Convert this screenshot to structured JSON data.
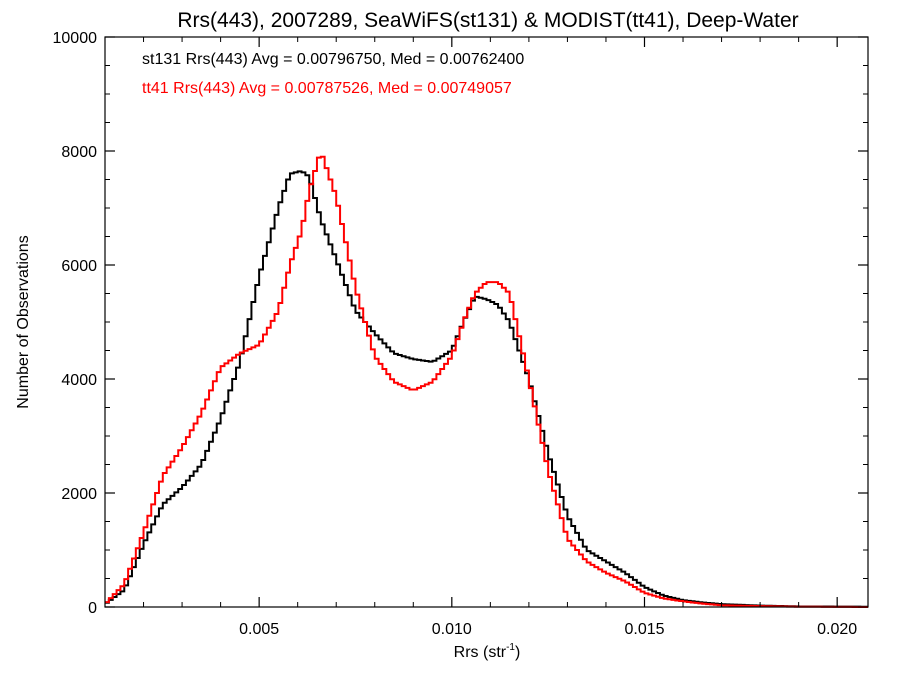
{
  "chart_data": {
    "type": "line",
    "step": true,
    "title": "Rrs(443), 2007289, SeaWiFS(st131) & MODIST(tt41), Deep-Water",
    "xlabel_main": "Rrs (str",
    "xlabel_sup": "-1",
    "xlabel_end": ")",
    "ylabel": "Number of Observations",
    "xlim": [
      0.001,
      0.0208
    ],
    "ylim": [
      0,
      10000
    ],
    "xticks": [
      0.005,
      0.01,
      0.015,
      0.02
    ],
    "xtick_labels": [
      "0.005",
      "0.010",
      "0.015",
      "0.020"
    ],
    "yticks": [
      0,
      2000,
      4000,
      6000,
      8000,
      10000
    ],
    "ytick_labels": [
      "0",
      "2000",
      "4000",
      "6000",
      "8000",
      "10000"
    ],
    "grid": false,
    "annotations": [
      "st131 Rrs(443) Avg = 0.00796750, Med = 0.00762400",
      "tt41 Rrs(443) Avg = 0.00787526, Med = 0.00749057"
    ],
    "series": [
      {
        "name": "st131",
        "color": "#000000",
        "x": [
          0.001,
          0.0015,
          0.002,
          0.0025,
          0.003,
          0.0035,
          0.004,
          0.0045,
          0.005,
          0.0055,
          0.0058,
          0.0061,
          0.0063,
          0.0066,
          0.007,
          0.0075,
          0.008,
          0.0085,
          0.009,
          0.0095,
          0.01,
          0.0103,
          0.0106,
          0.0109,
          0.0112,
          0.0115,
          0.012,
          0.0125,
          0.013,
          0.0135,
          0.014,
          0.0145,
          0.015,
          0.0155,
          0.016,
          0.0165,
          0.017,
          0.018,
          0.019,
          0.0208
        ],
        "y": [
          50,
          300,
          1100,
          1800,
          2100,
          2500,
          3300,
          4300,
          5800,
          7000,
          7600,
          7650,
          7550,
          6800,
          6100,
          5200,
          4800,
          4450,
          4350,
          4300,
          4500,
          5000,
          5450,
          5400,
          5300,
          5000,
          4000,
          2700,
          1600,
          1000,
          800,
          600,
          350,
          200,
          120,
          80,
          50,
          25,
          10,
          5
        ]
      },
      {
        "name": "tt41",
        "color": "#ff0000",
        "x": [
          0.001,
          0.0015,
          0.002,
          0.0025,
          0.003,
          0.0035,
          0.004,
          0.0045,
          0.005,
          0.0055,
          0.0058,
          0.0061,
          0.0063,
          0.0066,
          0.007,
          0.0075,
          0.008,
          0.0085,
          0.009,
          0.0095,
          0.01,
          0.0103,
          0.0106,
          0.0109,
          0.0112,
          0.0115,
          0.012,
          0.0125,
          0.013,
          0.0135,
          0.014,
          0.0145,
          0.015,
          0.0155,
          0.016,
          0.0165,
          0.017,
          0.018,
          0.019,
          0.0208
        ],
        "y": [
          50,
          400,
          1300,
          2300,
          2800,
          3400,
          4200,
          4450,
          4600,
          5200,
          6000,
          6600,
          7300,
          8000,
          7200,
          5600,
          4400,
          3950,
          3800,
          3950,
          4400,
          5000,
          5500,
          5700,
          5700,
          5500,
          4000,
          2400,
          1200,
          800,
          600,
          450,
          250,
          150,
          100,
          60,
          30,
          15,
          5,
          0
        ]
      }
    ]
  }
}
